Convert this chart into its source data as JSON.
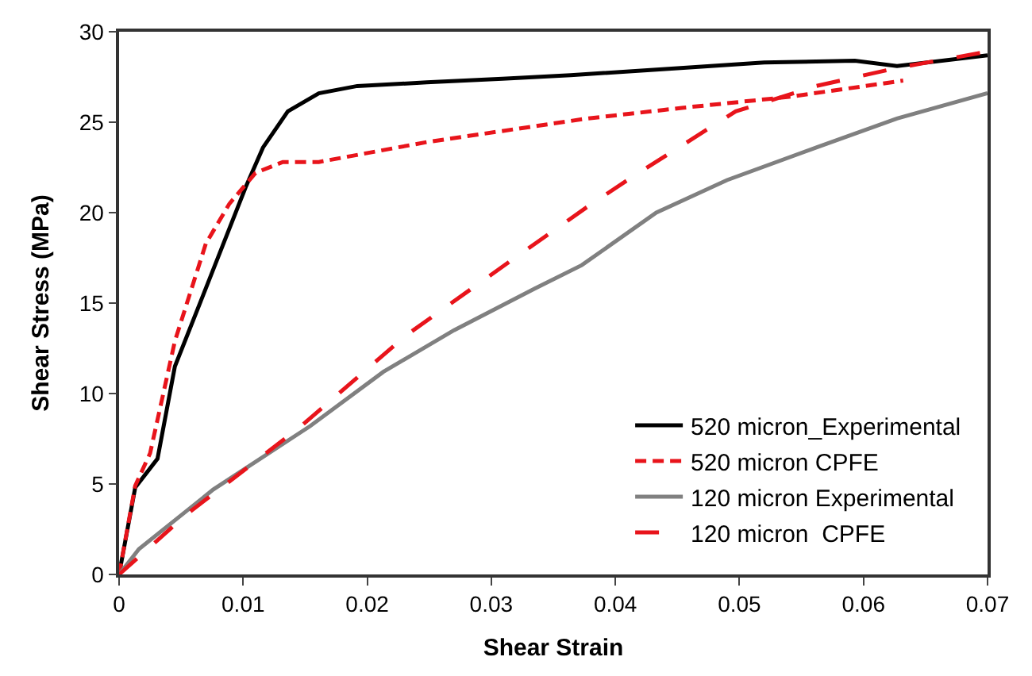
{
  "chart_data": {
    "type": "line",
    "xlabel": "Shear Strain",
    "ylabel": "Shear Stress (MPa)",
    "xlim": [
      0,
      0.07
    ],
    "xticks": [
      0,
      0.01,
      0.02,
      0.03,
      0.04,
      0.05,
      0.06,
      0.07
    ],
    "ylim": [
      0,
      30
    ],
    "yticks": [
      0,
      5,
      10,
      15,
      20,
      25,
      30
    ],
    "legend": "bottom right",
    "marker": "none",
    "series": [
      {
        "name": "520 micron_Experimental",
        "color": "#000000",
        "line_style": "solid",
        "x": [
          0,
          0.0013,
          0.0031,
          0.0045,
          0.0071,
          0.0102,
          0.0116,
          0.0136,
          0.0161,
          0.0192,
          0.0248,
          0.0309,
          0.0364,
          0.0455,
          0.052,
          0.0593,
          0.0627,
          0.07
        ],
        "values": [
          0,
          4.8,
          6.4,
          11.5,
          16,
          21.4,
          23.6,
          25.6,
          26.6,
          27.0,
          27.2,
          27.4,
          27.6,
          28.0,
          28.3,
          28.4,
          28.1,
          28.7
        ]
      },
      {
        "name": "520 micron CPFE",
        "color": "#e8141b",
        "line_style": "dashed",
        "x": [
          0,
          0.0013,
          0.0025,
          0.0045,
          0.007,
          0.0089,
          0.011,
          0.0132,
          0.0161,
          0.0248,
          0.0377,
          0.0455,
          0.054,
          0.0632
        ],
        "values": [
          0,
          4.9,
          6.7,
          12.9,
          18.3,
          20.5,
          22.2,
          22.8,
          22.8,
          23.9,
          25.2,
          25.8,
          26.4,
          27.3
        ]
      },
      {
        "name": "120 micron Experimental",
        "color": "#808080",
        "line_style": "solid",
        "x": [
          0,
          0.0016,
          0.0076,
          0.0154,
          0.0213,
          0.027,
          0.0335,
          0.0373,
          0.0433,
          0.049,
          0.0562,
          0.0627,
          0.07
        ],
        "values": [
          0,
          1.4,
          4.7,
          8.2,
          11.2,
          13.5,
          15.8,
          17.1,
          20.0,
          21.8,
          23.6,
          25.2,
          26.6
        ]
      },
      {
        "name": "120 micron  CPFE",
        "color": "#e8141b",
        "line_style": "longdash",
        "x": [
          0,
          0.0054,
          0.0145,
          0.0231,
          0.0317,
          0.0377,
          0.0412,
          0.0497,
          0.0562,
          0.0627,
          0.07
        ],
        "values": [
          0,
          3.3,
          8.1,
          13.2,
          17.4,
          20.3,
          21.9,
          25.6,
          27.0,
          28.0,
          28.9
        ]
      }
    ]
  }
}
